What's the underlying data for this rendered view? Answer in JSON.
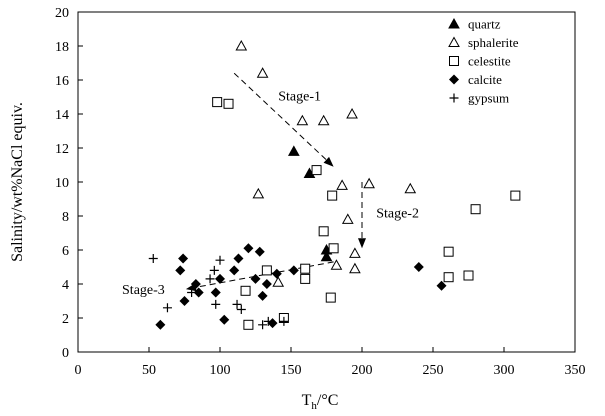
{
  "chart_data": {
    "type": "scatter",
    "title": "",
    "xlabel": "T",
    "xlabel_sub": "h",
    "xlabel_unit": "/°C",
    "ylabel": "Salinity/wt%NaCl equiv.",
    "xlim": [
      0,
      350
    ],
    "ylim": [
      0,
      20
    ],
    "xticks": [
      0,
      50,
      100,
      150,
      200,
      250,
      300,
      350
    ],
    "yticks": [
      0,
      2,
      4,
      6,
      8,
      10,
      12,
      14,
      16,
      18,
      20
    ],
    "grid": false,
    "legend_position": "top-right",
    "series": [
      {
        "name": "quartz",
        "marker": "filled-triangle",
        "points": [
          [
            152,
            11.8
          ],
          [
            163,
            10.5
          ],
          [
            175,
            6.0
          ],
          [
            175,
            5.6
          ]
        ]
      },
      {
        "name": "sphalerite",
        "marker": "open-triangle",
        "points": [
          [
            115,
            18.0
          ],
          [
            130,
            16.4
          ],
          [
            127,
            9.3
          ],
          [
            158,
            13.6
          ],
          [
            173,
            13.6
          ],
          [
            193,
            14.0
          ],
          [
            186,
            9.8
          ],
          [
            190,
            7.8
          ],
          [
            205,
            9.9
          ],
          [
            234,
            9.6
          ],
          [
            195,
            5.8
          ],
          [
            195,
            4.9
          ],
          [
            182,
            5.1
          ],
          [
            141,
            4.1
          ]
        ]
      },
      {
        "name": "celestite",
        "marker": "open-square",
        "points": [
          [
            98,
            14.7
          ],
          [
            106,
            14.6
          ],
          [
            168,
            10.7
          ],
          [
            179,
            9.2
          ],
          [
            173,
            7.1
          ],
          [
            180,
            6.1
          ],
          [
            160,
            4.9
          ],
          [
            160,
            4.3
          ],
          [
            178,
            3.2
          ],
          [
            133,
            4.8
          ],
          [
            118,
            3.6
          ],
          [
            145,
            2.0
          ],
          [
            120,
            1.6
          ],
          [
            261,
            5.9
          ],
          [
            261,
            4.4
          ],
          [
            275,
            4.5
          ],
          [
            280,
            8.4
          ],
          [
            308,
            9.2
          ]
        ]
      },
      {
        "name": "calcite",
        "marker": "filled-diamond",
        "points": [
          [
            58,
            1.6
          ],
          [
            74,
            5.5
          ],
          [
            72,
            4.8
          ],
          [
            75,
            3.0
          ],
          [
            85,
            3.5
          ],
          [
            83,
            4.0
          ],
          [
            97,
            3.5
          ],
          [
            100,
            4.3
          ],
          [
            103,
            1.9
          ],
          [
            110,
            4.8
          ],
          [
            113,
            5.5
          ],
          [
            120,
            6.1
          ],
          [
            128,
            5.9
          ],
          [
            125,
            4.3
          ],
          [
            130,
            3.3
          ],
          [
            133,
            4.0
          ],
          [
            137,
            1.7
          ],
          [
            140,
            4.6
          ],
          [
            152,
            4.8
          ],
          [
            240,
            5.0
          ],
          [
            256,
            3.9
          ]
        ]
      },
      {
        "name": "gypsum",
        "marker": "plus",
        "points": [
          [
            53,
            5.5
          ],
          [
            63,
            2.6
          ],
          [
            80,
            3.5
          ],
          [
            93,
            4.3
          ],
          [
            96,
            4.8
          ],
          [
            100,
            5.4
          ],
          [
            97,
            2.8
          ],
          [
            112,
            2.8
          ],
          [
            115,
            2.5
          ],
          [
            130,
            1.6
          ],
          [
            134,
            1.8
          ],
          [
            145,
            1.8
          ]
        ]
      }
    ],
    "annotations": [
      {
        "text": "Stage-1",
        "x": 141,
        "y": 14.8
      },
      {
        "text": "Stage-2",
        "x": 210,
        "y": 7.9
      },
      {
        "text": "Stage-3",
        "x": 31,
        "y": 3.4
      }
    ],
    "arrows": [
      {
        "from": [
          110,
          16.4
        ],
        "to": [
          180,
          10.9
        ]
      },
      {
        "from": [
          200,
          10.0
        ],
        "to": [
          200,
          6.1
        ]
      },
      {
        "from": [
          180,
          5.3
        ],
        "to": [
          76,
          3.7
        ]
      }
    ]
  }
}
